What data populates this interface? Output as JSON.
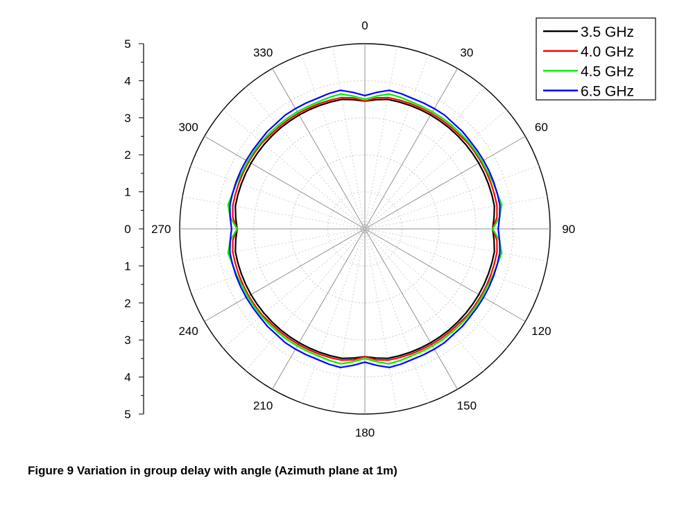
{
  "chart_data": {
    "type": "polar-line",
    "title": "",
    "angular_axis": {
      "unit": "degrees",
      "zero_at": "top",
      "direction": "clockwise",
      "tick_labels": [
        "0",
        "30",
        "60",
        "90",
        "120",
        "150",
        "180",
        "210",
        "240",
        "270",
        "300",
        "330"
      ]
    },
    "radial_axis": {
      "range": [
        0,
        5
      ],
      "tick_labels_upper": [
        "5",
        "4",
        "3",
        "2",
        "1",
        "0"
      ],
      "tick_labels_lower": [
        "1",
        "2",
        "3",
        "4",
        "5"
      ]
    },
    "legend_position": "top-right",
    "series": [
      {
        "name": "3.5 GHz",
        "color": "#000000",
        "angles": [
          0,
          5,
          10,
          15,
          20,
          25,
          30,
          35,
          40,
          45,
          50,
          55,
          60,
          65,
          70,
          75,
          80,
          85,
          90
        ],
        "values": [
          3.45,
          3.5,
          3.55,
          3.55,
          3.55,
          3.55,
          3.55,
          3.55,
          3.55,
          3.55,
          3.55,
          3.55,
          3.55,
          3.55,
          3.55,
          3.55,
          3.55,
          3.5,
          3.45
        ]
      },
      {
        "name": "4.0 GHz",
        "color": "#ff0000",
        "angles": [
          0,
          5,
          10,
          15,
          20,
          25,
          30,
          35,
          40,
          45,
          50,
          55,
          60,
          65,
          70,
          75,
          80,
          85,
          90
        ],
        "values": [
          3.45,
          3.55,
          3.6,
          3.6,
          3.6,
          3.6,
          3.6,
          3.6,
          3.6,
          3.6,
          3.62,
          3.62,
          3.62,
          3.62,
          3.62,
          3.62,
          3.62,
          3.58,
          3.45
        ]
      },
      {
        "name": "4.5 GHz",
        "color": "#00ee00",
        "angles": [
          0,
          5,
          10,
          15,
          20,
          25,
          30,
          35,
          40,
          45,
          50,
          55,
          60,
          65,
          70,
          75,
          80,
          85,
          90
        ],
        "values": [
          3.5,
          3.6,
          3.7,
          3.68,
          3.65,
          3.65,
          3.65,
          3.65,
          3.65,
          3.65,
          3.65,
          3.65,
          3.65,
          3.65,
          3.68,
          3.7,
          3.75,
          3.65,
          3.45
        ]
      },
      {
        "name": "6.5 GHz",
        "color": "#0000ff",
        "angles": [
          0,
          5,
          10,
          15,
          20,
          25,
          30,
          35,
          40,
          45,
          50,
          55,
          60,
          65,
          70,
          75,
          80,
          85,
          90
        ],
        "values": [
          3.6,
          3.7,
          3.8,
          3.78,
          3.75,
          3.75,
          3.75,
          3.75,
          3.72,
          3.72,
          3.7,
          3.7,
          3.7,
          3.7,
          3.7,
          3.7,
          3.7,
          3.65,
          3.6
        ]
      }
    ],
    "symmetry": "mirrored across both axes"
  },
  "caption": "Figure 9 Variation in group delay with angle (Azimuth plane at 1m)"
}
